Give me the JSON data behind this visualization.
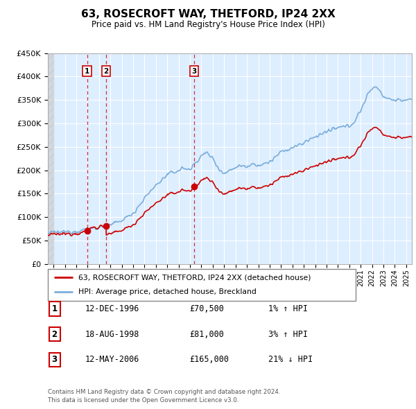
{
  "title": "63, ROSECROFT WAY, THETFORD, IP24 2XX",
  "subtitle": "Price paid vs. HM Land Registry's House Price Index (HPI)",
  "footer1": "Contains HM Land Registry data © Crown copyright and database right 2024.",
  "footer2": "This data is licensed under the Open Government Licence v3.0.",
  "legend_red": "63, ROSECROFT WAY, THETFORD, IP24 2XX (detached house)",
  "legend_blue": "HPI: Average price, detached house, Breckland",
  "transactions": [
    {
      "num": 1,
      "date": "12-DEC-1996",
      "price": 70500,
      "pct": "1%",
      "dir": "↑"
    },
    {
      "num": 2,
      "date": "18-AUG-1998",
      "price": 81000,
      "pct": "3%",
      "dir": "↑"
    },
    {
      "num": 3,
      "date": "12-MAY-2006",
      "price": 165000,
      "pct": "21%",
      "dir": "↓"
    }
  ],
  "transaction_years": [
    1996.95,
    1998.62,
    2006.36
  ],
  "transaction_prices": [
    70500,
    81000,
    165000
  ],
  "ylim": [
    0,
    450000
  ],
  "xlim_start": 1993.5,
  "xlim_end": 2025.5,
  "red_color": "#cc0000",
  "blue_color": "#7aaddb",
  "bg_color": "#ddeeff",
  "grid_color": "#ffffff"
}
